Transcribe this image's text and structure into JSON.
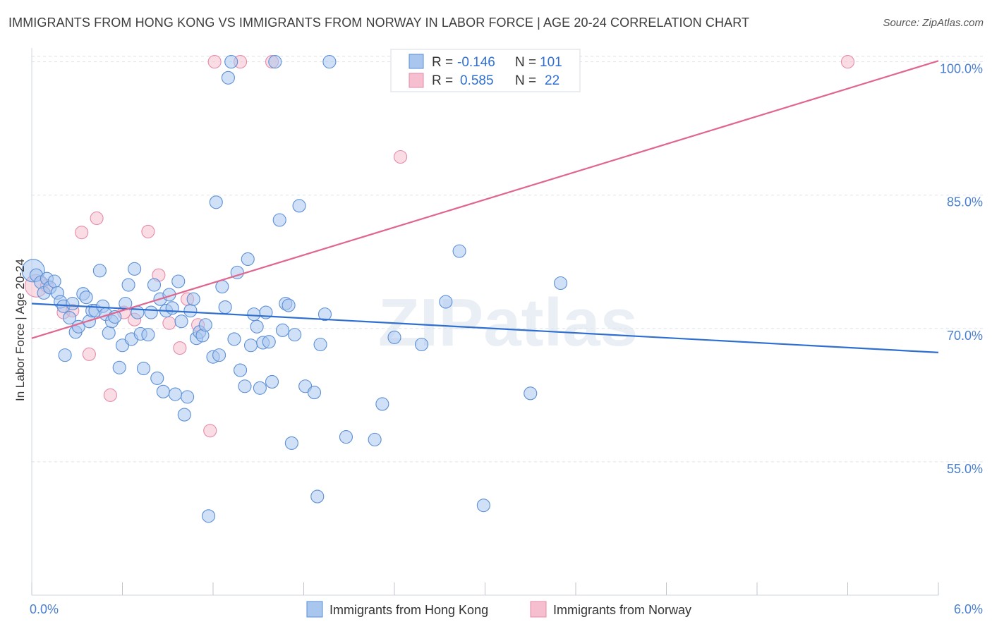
{
  "title": "IMMIGRANTS FROM HONG KONG VS IMMIGRANTS FROM NORWAY IN LABOR FORCE | AGE 20-24 CORRELATION CHART",
  "source": "Source: ZipAtlas.com",
  "watermark": "ZIPatlas",
  "colors": {
    "blue_fill": "#a9c6ef",
    "blue_stroke": "#5b8fd6",
    "blue_line": "#2f6fd0",
    "pink_fill": "#f6bfd0",
    "pink_stroke": "#e58aa8",
    "pink_line": "#e0668f",
    "tick_label": "#4a7fd0",
    "grid": "#dde3ea"
  },
  "legend": {
    "row1": {
      "r_label": "R =",
      "r_value": "-0.146",
      "n_label": "N =",
      "n_value": "101"
    },
    "row2": {
      "r_label": "R =",
      "r_value": "0.585",
      "n_label": "N =",
      "n_value": "22"
    }
  },
  "chart_data": {
    "type": "scatter",
    "title": "IMMIGRANTS FROM HONG KONG VS IMMIGRANTS FROM NORWAY IN LABOR FORCE | AGE 20-24 CORRELATION CHART",
    "xlabel": "",
    "ylabel": "In Labor Force | Age 20-24",
    "xlim": [
      0,
      6
    ],
    "ylim": [
      40,
      101
    ],
    "x_tick_labels": [
      "0.0%",
      "6.0%"
    ],
    "y_ticks": [
      55,
      70,
      85,
      100
    ],
    "y_tick_labels": [
      "55.0%",
      "70.0%",
      "85.0%",
      "100.0%"
    ],
    "grid": true,
    "legend_position": "top-center",
    "series": [
      {
        "name": "Immigrants from Hong Kong",
        "color": "#a9c6ef",
        "trend": {
          "x": [
            0,
            6
          ],
          "y": [
            72.8,
            67.3
          ]
        },
        "points": [
          [
            0.01,
            76.5
          ],
          [
            0.03,
            76.0
          ],
          [
            0.06,
            75.2
          ],
          [
            0.08,
            74.0
          ],
          [
            0.1,
            75.6
          ],
          [
            0.12,
            74.6
          ],
          [
            0.15,
            75.3
          ],
          [
            0.17,
            74.0
          ],
          [
            0.19,
            73.0
          ],
          [
            0.21,
            72.5
          ],
          [
            0.22,
            67.0
          ],
          [
            0.25,
            71.2
          ],
          [
            0.27,
            72.8
          ],
          [
            0.29,
            69.6
          ],
          [
            0.31,
            70.2
          ],
          [
            0.34,
            73.9
          ],
          [
            0.36,
            73.5
          ],
          [
            0.38,
            70.8
          ],
          [
            0.4,
            72.0
          ],
          [
            0.42,
            72.0
          ],
          [
            0.45,
            76.5
          ],
          [
            0.47,
            72.5
          ],
          [
            0.49,
            71.6
          ],
          [
            0.51,
            69.5
          ],
          [
            0.53,
            70.8
          ],
          [
            0.55,
            71.3
          ],
          [
            0.58,
            65.6
          ],
          [
            0.6,
            68.1
          ],
          [
            0.62,
            72.8
          ],
          [
            0.64,
            74.9
          ],
          [
            0.66,
            68.8
          ],
          [
            0.68,
            76.7
          ],
          [
            0.7,
            71.8
          ],
          [
            0.72,
            69.4
          ],
          [
            0.74,
            65.5
          ],
          [
            0.77,
            69.3
          ],
          [
            0.79,
            71.8
          ],
          [
            0.81,
            74.9
          ],
          [
            0.83,
            64.4
          ],
          [
            0.85,
            73.3
          ],
          [
            0.87,
            62.9
          ],
          [
            0.89,
            72.0
          ],
          [
            0.91,
            73.8
          ],
          [
            0.93,
            72.3
          ],
          [
            0.95,
            62.6
          ],
          [
            0.97,
            75.3
          ],
          [
            0.99,
            70.8
          ],
          [
            1.01,
            60.3
          ],
          [
            1.03,
            62.3
          ],
          [
            1.05,
            72.0
          ],
          [
            1.07,
            73.3
          ],
          [
            1.09,
            68.9
          ],
          [
            1.11,
            69.6
          ],
          [
            1.13,
            69.2
          ],
          [
            1.15,
            70.4
          ],
          [
            1.17,
            48.9
          ],
          [
            1.2,
            66.8
          ],
          [
            1.22,
            84.2
          ],
          [
            1.24,
            67.0
          ],
          [
            1.26,
            74.7
          ],
          [
            1.28,
            72.4
          ],
          [
            1.3,
            98.2
          ],
          [
            1.32,
            100.0
          ],
          [
            1.34,
            68.8
          ],
          [
            1.36,
            76.3
          ],
          [
            1.38,
            65.3
          ],
          [
            1.41,
            63.5
          ],
          [
            1.43,
            77.8
          ],
          [
            1.45,
            68.1
          ],
          [
            1.47,
            71.6
          ],
          [
            1.49,
            70.2
          ],
          [
            1.51,
            63.3
          ],
          [
            1.53,
            68.4
          ],
          [
            1.55,
            71.8
          ],
          [
            1.57,
            68.5
          ],
          [
            1.59,
            64.0
          ],
          [
            1.61,
            100.0
          ],
          [
            1.64,
            82.2
          ],
          [
            1.66,
            69.8
          ],
          [
            1.68,
            72.8
          ],
          [
            1.7,
            72.6
          ],
          [
            1.72,
            57.1
          ],
          [
            1.74,
            69.3
          ],
          [
            1.77,
            83.8
          ],
          [
            1.81,
            63.5
          ],
          [
            1.87,
            62.8
          ],
          [
            1.89,
            51.1
          ],
          [
            1.91,
            68.2
          ],
          [
            1.94,
            71.6
          ],
          [
            1.97,
            100.0
          ],
          [
            2.08,
            57.8
          ],
          [
            2.27,
            57.5
          ],
          [
            2.32,
            61.5
          ],
          [
            2.4,
            69.0
          ],
          [
            2.58,
            68.2
          ],
          [
            2.74,
            73.0
          ],
          [
            2.83,
            78.7
          ],
          [
            2.99,
            50.1
          ],
          [
            3.3,
            62.7
          ],
          [
            3.5,
            75.1
          ]
        ]
      },
      {
        "name": "Immigrants from Norway",
        "color": "#f6bfd0",
        "trend": {
          "x": [
            0,
            6
          ],
          "y": [
            68.9,
            100.1
          ]
        },
        "points": [
          [
            0.03,
            74.8
          ],
          [
            0.1,
            74.8
          ],
          [
            0.21,
            71.8
          ],
          [
            0.27,
            72.0
          ],
          [
            0.33,
            80.8
          ],
          [
            0.38,
            67.1
          ],
          [
            0.43,
            82.4
          ],
          [
            0.52,
            62.5
          ],
          [
            0.61,
            71.8
          ],
          [
            0.68,
            71.0
          ],
          [
            0.77,
            80.9
          ],
          [
            0.84,
            76.0
          ],
          [
            0.91,
            70.6
          ],
          [
            0.98,
            67.8
          ],
          [
            1.03,
            73.3
          ],
          [
            1.1,
            70.4
          ],
          [
            1.18,
            58.5
          ],
          [
            1.21,
            100.0
          ],
          [
            1.38,
            100.0
          ],
          [
            1.59,
            100.0
          ],
          [
            2.44,
            89.3
          ],
          [
            5.4,
            100.0
          ]
        ]
      }
    ]
  },
  "bottom_legend": {
    "items": [
      {
        "label": "Immigrants from Hong Kong"
      },
      {
        "label": "Immigrants from Norway"
      }
    ]
  }
}
